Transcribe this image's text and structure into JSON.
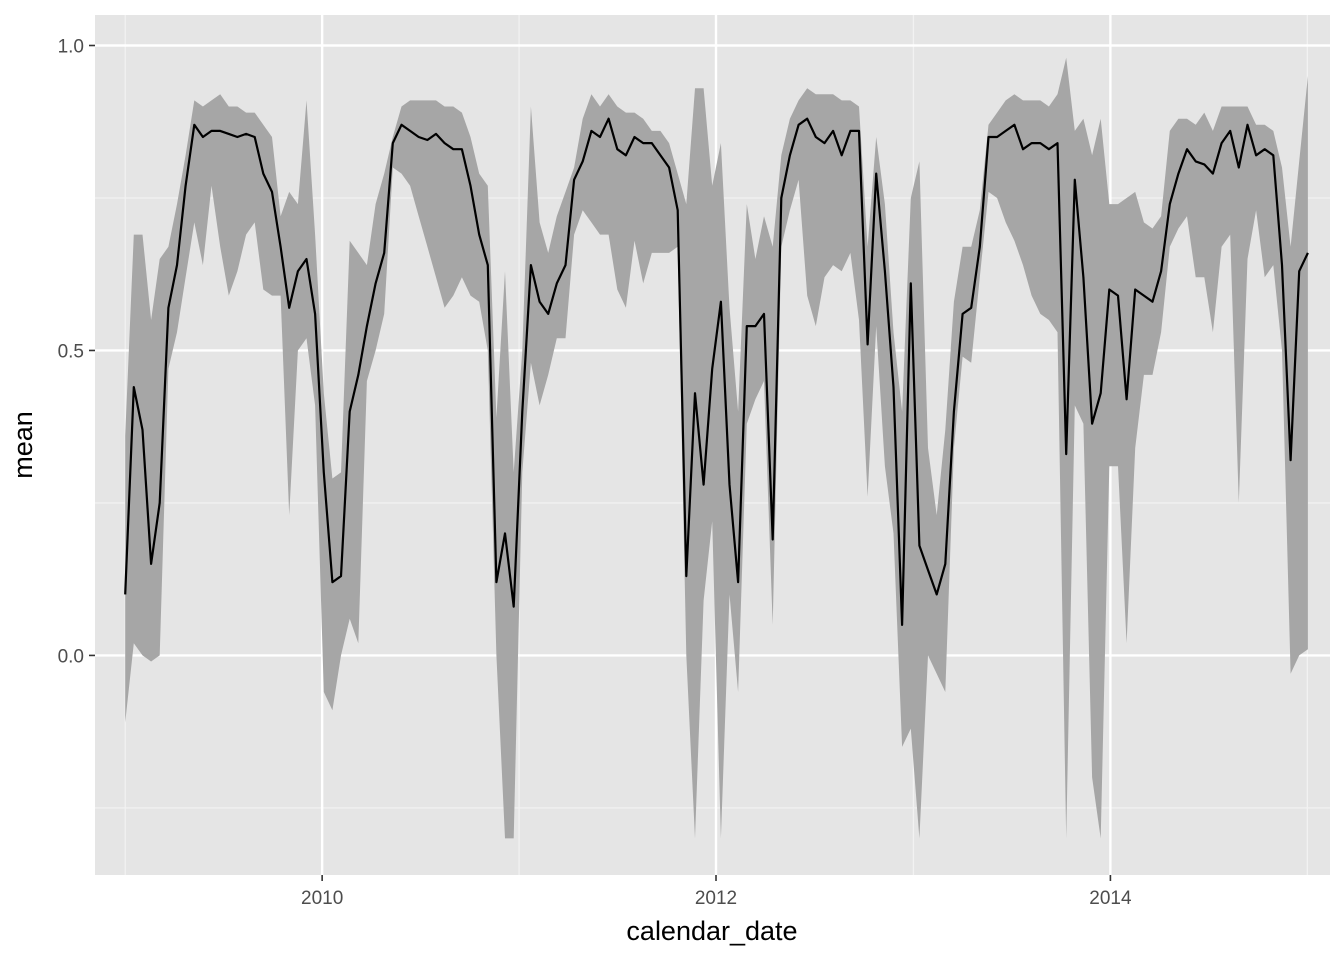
{
  "chart_data": {
    "type": "line",
    "title": "",
    "xlabel": "calendar_date",
    "ylabel": "mean",
    "x_axis": {
      "kind": "date",
      "ticks": [
        "2010",
        "2012",
        "2014"
      ],
      "range": [
        "2008-11-06",
        "2015-02-12"
      ]
    },
    "y_axis": {
      "ticks": [
        "0.0",
        "0.5",
        "1.0"
      ],
      "tick_values": [
        0.0,
        0.5,
        1.0
      ],
      "range": [
        -0.36,
        1.05
      ]
    },
    "grid": true,
    "background": "#e5e5e5",
    "ribbon_color": "#a6a6a6",
    "line_color": "#000000",
    "series": [
      {
        "values": [
          {
            "date": "2009-01-01",
            "mean": 0.1,
            "lower": -0.11,
            "upper": 0.36
          },
          {
            "date": "2009-01-17",
            "mean": 0.44,
            "lower": 0.02,
            "upper": 0.69
          },
          {
            "date": "2009-02-02",
            "mean": 0.37,
            "lower": 0.0,
            "upper": 0.69
          },
          {
            "date": "2009-02-18",
            "mean": 0.15,
            "lower": -0.01,
            "upper": 0.55
          },
          {
            "date": "2009-03-06",
            "mean": 0.25,
            "lower": 0.0,
            "upper": 0.65
          },
          {
            "date": "2009-03-22",
            "mean": 0.57,
            "lower": 0.47,
            "upper": 0.67
          },
          {
            "date": "2009-04-07",
            "mean": 0.64,
            "lower": 0.53,
            "upper": 0.74
          },
          {
            "date": "2009-04-23",
            "mean": 0.77,
            "lower": 0.62,
            "upper": 0.82
          },
          {
            "date": "2009-05-09",
            "mean": 0.87,
            "lower": 0.71,
            "upper": 0.91
          },
          {
            "date": "2009-05-25",
            "mean": 0.85,
            "lower": 0.64,
            "upper": 0.9
          },
          {
            "date": "2009-06-10",
            "mean": 0.86,
            "lower": 0.77,
            "upper": 0.91
          },
          {
            "date": "2009-06-26",
            "mean": 0.86,
            "lower": 0.67,
            "upper": 0.92
          },
          {
            "date": "2009-07-12",
            "mean": 0.855,
            "lower": 0.59,
            "upper": 0.9
          },
          {
            "date": "2009-07-28",
            "mean": 0.85,
            "lower": 0.63,
            "upper": 0.9
          },
          {
            "date": "2009-08-13",
            "mean": 0.855,
            "lower": 0.69,
            "upper": 0.89
          },
          {
            "date": "2009-08-29",
            "mean": 0.85,
            "lower": 0.71,
            "upper": 0.89
          },
          {
            "date": "2009-09-14",
            "mean": 0.79,
            "lower": 0.6,
            "upper": 0.87
          },
          {
            "date": "2009-09-30",
            "mean": 0.76,
            "lower": 0.59,
            "upper": 0.85
          },
          {
            "date": "2009-10-16",
            "mean": 0.67,
            "lower": 0.59,
            "upper": 0.72
          },
          {
            "date": "2009-11-01",
            "mean": 0.57,
            "lower": 0.23,
            "upper": 0.76
          },
          {
            "date": "2009-11-17",
            "mean": 0.63,
            "lower": 0.5,
            "upper": 0.74
          },
          {
            "date": "2009-12-03",
            "mean": 0.65,
            "lower": 0.52,
            "upper": 0.91
          },
          {
            "date": "2009-12-19",
            "mean": 0.56,
            "lower": 0.41,
            "upper": 0.69
          },
          {
            "date": "2010-01-04",
            "mean": 0.3,
            "lower": -0.06,
            "upper": 0.43
          },
          {
            "date": "2010-01-20",
            "mean": 0.12,
            "lower": -0.09,
            "upper": 0.29
          },
          {
            "date": "2010-02-05",
            "mean": 0.13,
            "lower": 0.0,
            "upper": 0.3
          },
          {
            "date": "2010-02-21",
            "mean": 0.4,
            "lower": 0.06,
            "upper": 0.68
          },
          {
            "date": "2010-03-09",
            "mean": 0.46,
            "lower": 0.02,
            "upper": 0.66
          },
          {
            "date": "2010-03-25",
            "mean": 0.54,
            "lower": 0.45,
            "upper": 0.64
          },
          {
            "date": "2010-04-10",
            "mean": 0.61,
            "lower": 0.5,
            "upper": 0.74
          },
          {
            "date": "2010-04-26",
            "mean": 0.66,
            "lower": 0.56,
            "upper": 0.79
          },
          {
            "date": "2010-05-12",
            "mean": 0.84,
            "lower": 0.8,
            "upper": 0.85
          },
          {
            "date": "2010-05-28",
            "mean": 0.87,
            "lower": 0.79,
            "upper": 0.9
          },
          {
            "date": "2010-06-13",
            "mean": 0.86,
            "lower": 0.77,
            "upper": 0.91
          },
          {
            "date": "2010-06-29",
            "mean": 0.85,
            "lower": 0.72,
            "upper": 0.91
          },
          {
            "date": "2010-07-15",
            "mean": 0.845,
            "lower": 0.67,
            "upper": 0.91
          },
          {
            "date": "2010-07-31",
            "mean": 0.855,
            "lower": 0.62,
            "upper": 0.91
          },
          {
            "date": "2010-08-16",
            "mean": 0.84,
            "lower": 0.57,
            "upper": 0.9
          },
          {
            "date": "2010-09-01",
            "mean": 0.83,
            "lower": 0.59,
            "upper": 0.9
          },
          {
            "date": "2010-09-17",
            "mean": 0.83,
            "lower": 0.62,
            "upper": 0.89
          },
          {
            "date": "2010-10-03",
            "mean": 0.77,
            "lower": 0.59,
            "upper": 0.85
          },
          {
            "date": "2010-10-19",
            "mean": 0.69,
            "lower": 0.58,
            "upper": 0.79
          },
          {
            "date": "2010-11-04",
            "mean": 0.64,
            "lower": 0.5,
            "upper": 0.77
          },
          {
            "date": "2010-11-20",
            "mean": 0.12,
            "lower": 0.0,
            "upper": 0.39
          },
          {
            "date": "2010-12-06",
            "mean": 0.2,
            "lower": -0.3,
            "upper": 0.63
          },
          {
            "date": "2010-12-22",
            "mean": 0.08,
            "lower": -0.3,
            "upper": 0.3
          },
          {
            "date": "2011-01-07",
            "mean": 0.4,
            "lower": 0.3,
            "upper": 0.5
          },
          {
            "date": "2011-01-23",
            "mean": 0.64,
            "lower": 0.48,
            "upper": 0.9
          },
          {
            "date": "2011-02-08",
            "mean": 0.58,
            "lower": 0.41,
            "upper": 0.71
          },
          {
            "date": "2011-02-24",
            "mean": 0.56,
            "lower": 0.46,
            "upper": 0.66
          },
          {
            "date": "2011-03-12",
            "mean": 0.61,
            "lower": 0.52,
            "upper": 0.72
          },
          {
            "date": "2011-03-28",
            "mean": 0.64,
            "lower": 0.52,
            "upper": 0.76
          },
          {
            "date": "2011-04-13",
            "mean": 0.78,
            "lower": 0.69,
            "upper": 0.8
          },
          {
            "date": "2011-04-29",
            "mean": 0.81,
            "lower": 0.73,
            "upper": 0.88
          },
          {
            "date": "2011-05-15",
            "mean": 0.86,
            "lower": 0.71,
            "upper": 0.92
          },
          {
            "date": "2011-05-31",
            "mean": 0.85,
            "lower": 0.69,
            "upper": 0.9
          },
          {
            "date": "2011-06-16",
            "mean": 0.88,
            "lower": 0.69,
            "upper": 0.92
          },
          {
            "date": "2011-07-02",
            "mean": 0.83,
            "lower": 0.6,
            "upper": 0.9
          },
          {
            "date": "2011-07-18",
            "mean": 0.82,
            "lower": 0.57,
            "upper": 0.89
          },
          {
            "date": "2011-08-03",
            "mean": 0.85,
            "lower": 0.68,
            "upper": 0.89
          },
          {
            "date": "2011-08-19",
            "mean": 0.84,
            "lower": 0.61,
            "upper": 0.88
          },
          {
            "date": "2011-09-04",
            "mean": 0.84,
            "lower": 0.66,
            "upper": 0.86
          },
          {
            "date": "2011-09-20",
            "mean": 0.82,
            "lower": 0.66,
            "upper": 0.86
          },
          {
            "date": "2011-10-06",
            "mean": 0.8,
            "lower": 0.66,
            "upper": 0.84
          },
          {
            "date": "2011-10-22",
            "mean": 0.73,
            "lower": 0.67,
            "upper": 0.79
          },
          {
            "date": "2011-11-07",
            "mean": 0.13,
            "lower": 0.0,
            "upper": 0.74
          },
          {
            "date": "2011-11-23",
            "mean": 0.43,
            "lower": -0.3,
            "upper": 0.93
          },
          {
            "date": "2011-12-09",
            "mean": 0.28,
            "lower": 0.09,
            "upper": 0.93
          },
          {
            "date": "2011-12-25",
            "mean": 0.47,
            "lower": 0.22,
            "upper": 0.77
          },
          {
            "date": "2012-01-10",
            "mean": 0.58,
            "lower": -0.3,
            "upper": 0.84
          },
          {
            "date": "2012-01-26",
            "mean": 0.28,
            "lower": 0.1,
            "upper": 0.57
          },
          {
            "date": "2012-02-11",
            "mean": 0.12,
            "lower": -0.06,
            "upper": 0.4
          },
          {
            "date": "2012-02-27",
            "mean": 0.54,
            "lower": 0.38,
            "upper": 0.74
          },
          {
            "date": "2012-03-14",
            "mean": 0.54,
            "lower": 0.42,
            "upper": 0.65
          },
          {
            "date": "2012-03-30",
            "mean": 0.56,
            "lower": 0.45,
            "upper": 0.72
          },
          {
            "date": "2012-04-15",
            "mean": 0.19,
            "lower": 0.05,
            "upper": 0.67
          },
          {
            "date": "2012-05-01",
            "mean": 0.75,
            "lower": 0.67,
            "upper": 0.82
          },
          {
            "date": "2012-05-17",
            "mean": 0.82,
            "lower": 0.73,
            "upper": 0.88
          },
          {
            "date": "2012-06-02",
            "mean": 0.87,
            "lower": 0.78,
            "upper": 0.91
          },
          {
            "date": "2012-06-18",
            "mean": 0.88,
            "lower": 0.59,
            "upper": 0.93
          },
          {
            "date": "2012-07-04",
            "mean": 0.85,
            "lower": 0.54,
            "upper": 0.92
          },
          {
            "date": "2012-07-20",
            "mean": 0.84,
            "lower": 0.62,
            "upper": 0.92
          },
          {
            "date": "2012-08-05",
            "mean": 0.86,
            "lower": 0.64,
            "upper": 0.92
          },
          {
            "date": "2012-08-21",
            "mean": 0.82,
            "lower": 0.63,
            "upper": 0.91
          },
          {
            "date": "2012-09-06",
            "mean": 0.86,
            "lower": 0.66,
            "upper": 0.91
          },
          {
            "date": "2012-09-22",
            "mean": 0.86,
            "lower": 0.55,
            "upper": 0.9
          },
          {
            "date": "2012-10-08",
            "mean": 0.51,
            "lower": 0.26,
            "upper": 0.67
          },
          {
            "date": "2012-10-24",
            "mean": 0.79,
            "lower": 0.54,
            "upper": 0.85
          },
          {
            "date": "2012-11-09",
            "mean": 0.63,
            "lower": 0.31,
            "upper": 0.74
          },
          {
            "date": "2012-11-25",
            "mean": 0.44,
            "lower": 0.2,
            "upper": 0.53
          },
          {
            "date": "2012-12-11",
            "mean": 0.05,
            "lower": -0.15,
            "upper": 0.4
          },
          {
            "date": "2012-12-27",
            "mean": 0.61,
            "lower": -0.12,
            "upper": 0.75
          },
          {
            "date": "2013-01-12",
            "mean": 0.18,
            "lower": -0.3,
            "upper": 0.81
          },
          {
            "date": "2013-01-28",
            "mean": 0.14,
            "lower": 0.0,
            "upper": 0.34
          },
          {
            "date": "2013-02-13",
            "mean": 0.1,
            "lower": -0.03,
            "upper": 0.23
          },
          {
            "date": "2013-03-01",
            "mean": 0.15,
            "lower": -0.06,
            "upper": 0.37
          },
          {
            "date": "2013-03-17",
            "mean": 0.4,
            "lower": 0.34,
            "upper": 0.58
          },
          {
            "date": "2013-04-02",
            "mean": 0.56,
            "lower": 0.49,
            "upper": 0.67
          },
          {
            "date": "2013-04-18",
            "mean": 0.57,
            "lower": 0.48,
            "upper": 0.67
          },
          {
            "date": "2013-05-04",
            "mean": 0.67,
            "lower": 0.62,
            "upper": 0.73
          },
          {
            "date": "2013-05-20",
            "mean": 0.85,
            "lower": 0.76,
            "upper": 0.87
          },
          {
            "date": "2013-06-05",
            "mean": 0.85,
            "lower": 0.75,
            "upper": 0.89
          },
          {
            "date": "2013-06-21",
            "mean": 0.86,
            "lower": 0.71,
            "upper": 0.91
          },
          {
            "date": "2013-07-07",
            "mean": 0.87,
            "lower": 0.68,
            "upper": 0.92
          },
          {
            "date": "2013-07-23",
            "mean": 0.83,
            "lower": 0.64,
            "upper": 0.91
          },
          {
            "date": "2013-08-08",
            "mean": 0.84,
            "lower": 0.59,
            "upper": 0.91
          },
          {
            "date": "2013-08-24",
            "mean": 0.84,
            "lower": 0.56,
            "upper": 0.91
          },
          {
            "date": "2013-09-09",
            "mean": 0.83,
            "lower": 0.55,
            "upper": 0.9
          },
          {
            "date": "2013-09-25",
            "mean": 0.84,
            "lower": 0.53,
            "upper": 0.92
          },
          {
            "date": "2013-10-11",
            "mean": 0.33,
            "lower": -0.3,
            "upper": 0.98
          },
          {
            "date": "2013-10-27",
            "mean": 0.78,
            "lower": 0.41,
            "upper": 0.86
          },
          {
            "date": "2013-11-12",
            "mean": 0.62,
            "lower": 0.38,
            "upper": 0.88
          },
          {
            "date": "2013-11-28",
            "mean": 0.38,
            "lower": -0.2,
            "upper": 0.82
          },
          {
            "date": "2013-12-14",
            "mean": 0.43,
            "lower": -0.3,
            "upper": 0.88
          },
          {
            "date": "2013-12-30",
            "mean": 0.6,
            "lower": 0.31,
            "upper": 0.74
          },
          {
            "date": "2014-01-15",
            "mean": 0.59,
            "lower": 0.31,
            "upper": 0.74
          },
          {
            "date": "2014-01-31",
            "mean": 0.42,
            "lower": 0.02,
            "upper": 0.75
          },
          {
            "date": "2014-02-16",
            "mean": 0.6,
            "lower": 0.34,
            "upper": 0.76
          },
          {
            "date": "2014-03-04",
            "mean": 0.59,
            "lower": 0.46,
            "upper": 0.71
          },
          {
            "date": "2014-03-20",
            "mean": 0.58,
            "lower": 0.46,
            "upper": 0.7
          },
          {
            "date": "2014-04-05",
            "mean": 0.63,
            "lower": 0.53,
            "upper": 0.72
          },
          {
            "date": "2014-04-21",
            "mean": 0.74,
            "lower": 0.67,
            "upper": 0.86
          },
          {
            "date": "2014-05-07",
            "mean": 0.79,
            "lower": 0.7,
            "upper": 0.88
          },
          {
            "date": "2014-05-23",
            "mean": 0.83,
            "lower": 0.72,
            "upper": 0.88
          },
          {
            "date": "2014-06-08",
            "mean": 0.81,
            "lower": 0.62,
            "upper": 0.87
          },
          {
            "date": "2014-06-24",
            "mean": 0.805,
            "lower": 0.62,
            "upper": 0.89
          },
          {
            "date": "2014-07-10",
            "mean": 0.79,
            "lower": 0.53,
            "upper": 0.86
          },
          {
            "date": "2014-07-26",
            "mean": 0.84,
            "lower": 0.67,
            "upper": 0.9
          },
          {
            "date": "2014-08-11",
            "mean": 0.86,
            "lower": 0.69,
            "upper": 0.9
          },
          {
            "date": "2014-08-27",
            "mean": 0.8,
            "lower": 0.25,
            "upper": 0.9
          },
          {
            "date": "2014-09-12",
            "mean": 0.87,
            "lower": 0.65,
            "upper": 0.9
          },
          {
            "date": "2014-09-28",
            "mean": 0.82,
            "lower": 0.73,
            "upper": 0.87
          },
          {
            "date": "2014-10-14",
            "mean": 0.83,
            "lower": 0.62,
            "upper": 0.87
          },
          {
            "date": "2014-10-30",
            "mean": 0.82,
            "lower": 0.64,
            "upper": 0.86
          },
          {
            "date": "2014-11-15",
            "mean": 0.64,
            "lower": 0.5,
            "upper": 0.8
          },
          {
            "date": "2014-12-01",
            "mean": 0.32,
            "lower": -0.03,
            "upper": 0.67
          },
          {
            "date": "2014-12-17",
            "mean": 0.63,
            "lower": 0.0,
            "upper": 0.81
          },
          {
            "date": "2015-01-02",
            "mean": 0.66,
            "lower": 0.01,
            "upper": 0.95
          }
        ]
      }
    ]
  }
}
